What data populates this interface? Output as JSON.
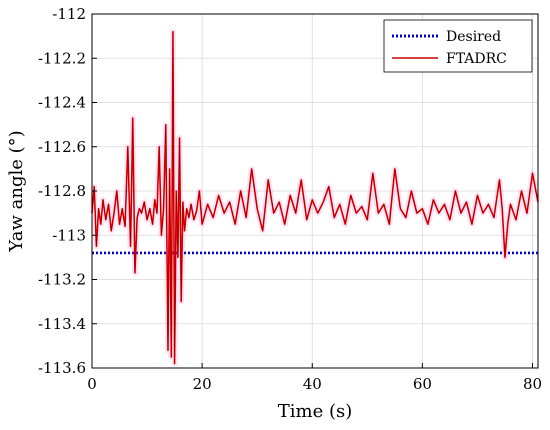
{
  "chart_data": {
    "type": "line",
    "xlabel": "Time (s)",
    "ylabel": "Yaw angle (°)",
    "xlim": [
      0,
      81
    ],
    "ylim": [
      -113.6,
      -112
    ],
    "xticks": [
      0,
      20,
      40,
      60,
      80
    ],
    "xtick_labels": [
      "0",
      "20",
      "40",
      "60",
      "80"
    ],
    "yticks": [
      -112,
      -112.2,
      -112.4,
      -112.6,
      -112.8,
      -113,
      -113.2,
      -113.4,
      -113.6
    ],
    "ytick_labels": [
      "-112",
      "-112.2",
      "-112.4",
      "-112.6",
      "-112.8",
      "-113",
      "-113.2",
      "-113.4",
      "-113.6"
    ],
    "grid": true,
    "legend_position": "top-right",
    "series": [
      {
        "name": "Desired",
        "color": "#0000cc",
        "style": "dotted",
        "x": [
          0,
          81
        ],
        "y": [
          -113.08,
          -113.08
        ]
      },
      {
        "name": "FTADRC",
        "color": "#ff0000",
        "edge_color": "#8b0000",
        "style": "solid",
        "x": [
          0,
          0.4,
          0.8,
          1.2,
          1.6,
          2.0,
          2.5,
          3.0,
          3.5,
          4.0,
          4.5,
          5.0,
          5.5,
          6.0,
          6.5,
          7.0,
          7.4,
          7.8,
          8.2,
          8.6,
          9.0,
          9.5,
          10.0,
          10.5,
          11.0,
          11.4,
          11.8,
          12.2,
          12.6,
          13.0,
          13.4,
          13.8,
          14.1,
          14.4,
          14.7,
          15.0,
          15.3,
          15.6,
          15.9,
          16.2,
          16.5,
          16.8,
          17.2,
          17.6,
          18.0,
          18.5,
          19.0,
          19.5,
          20.0,
          21,
          22,
          23,
          24,
          25,
          26,
          27,
          28,
          29,
          30,
          31,
          32,
          33,
          34,
          35,
          36,
          37,
          38,
          39,
          40,
          41,
          42,
          43,
          44,
          45,
          46,
          47,
          48,
          49,
          50,
          51,
          52,
          53,
          54,
          55,
          56,
          57,
          58,
          59,
          60,
          61,
          62,
          63,
          64,
          65,
          66,
          67,
          68,
          69,
          70,
          71,
          72,
          73,
          74,
          74.5,
          75,
          75.5,
          76,
          77,
          78,
          79,
          80,
          81
        ],
        "y": [
          -112.9,
          -112.78,
          -113.05,
          -112.88,
          -112.95,
          -112.84,
          -112.93,
          -112.86,
          -112.98,
          -112.9,
          -112.8,
          -112.95,
          -112.88,
          -112.96,
          -112.6,
          -113.05,
          -112.47,
          -113.17,
          -112.92,
          -112.88,
          -112.9,
          -112.85,
          -112.93,
          -112.88,
          -112.95,
          -112.84,
          -112.9,
          -112.6,
          -113.0,
          -112.88,
          -112.5,
          -113.52,
          -112.7,
          -113.55,
          -112.08,
          -113.58,
          -112.8,
          -113.1,
          -112.56,
          -113.3,
          -112.85,
          -112.98,
          -112.88,
          -112.92,
          -112.86,
          -112.93,
          -112.89,
          -112.8,
          -112.95,
          -112.86,
          -112.92,
          -112.82,
          -112.9,
          -112.85,
          -112.95,
          -112.8,
          -112.92,
          -112.7,
          -112.88,
          -112.98,
          -112.75,
          -112.9,
          -112.85,
          -112.95,
          -112.82,
          -112.9,
          -112.75,
          -112.93,
          -112.84,
          -112.9,
          -112.85,
          -112.78,
          -112.92,
          -112.86,
          -112.95,
          -112.82,
          -112.9,
          -112.87,
          -112.93,
          -112.72,
          -112.9,
          -112.86,
          -112.95,
          -112.7,
          -112.88,
          -112.92,
          -112.8,
          -112.9,
          -112.88,
          -112.95,
          -112.84,
          -112.9,
          -112.86,
          -112.93,
          -112.8,
          -112.9,
          -112.85,
          -112.95,
          -112.82,
          -112.9,
          -112.86,
          -112.92,
          -112.75,
          -112.88,
          -113.1,
          -112.95,
          -112.86,
          -112.93,
          -112.8,
          -112.9,
          -112.72,
          -112.85
        ]
      }
    ]
  }
}
